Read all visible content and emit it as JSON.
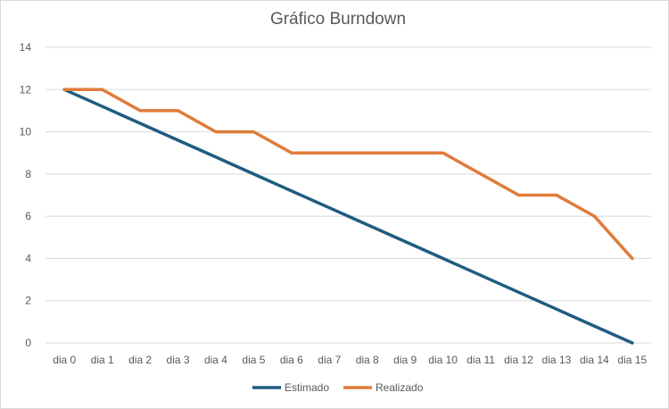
{
  "chart_data": {
    "type": "line",
    "title": "Gráfico Burndown",
    "xlabel": "",
    "ylabel": "",
    "categories": [
      "dia 0",
      "dia 1",
      "dia 2",
      "dia 3",
      "dia 4",
      "dia 5",
      "dia 6",
      "dia 7",
      "dia 8",
      "dia 9",
      "dia 10",
      "dia 11",
      "dia 12",
      "dia 13",
      "dia 14",
      "dia 15"
    ],
    "ylim": [
      0,
      14
    ],
    "yticks": [
      0,
      2,
      4,
      6,
      8,
      10,
      12,
      14
    ],
    "grid": true,
    "legend_position": "bottom",
    "series": [
      {
        "name": "Estimado",
        "color": "#1f5c80",
        "values": [
          12,
          11.2,
          10.4,
          9.6,
          8.8,
          8.0,
          7.2,
          6.4,
          5.6,
          4.8,
          4.0,
          3.2,
          2.4,
          1.6,
          0.8,
          0
        ]
      },
      {
        "name": "Realizado",
        "color": "#e07b39",
        "values": [
          12,
          12,
          11,
          11,
          10,
          10,
          9,
          9,
          9,
          9,
          9,
          8,
          7,
          7,
          6,
          4
        ]
      }
    ]
  }
}
